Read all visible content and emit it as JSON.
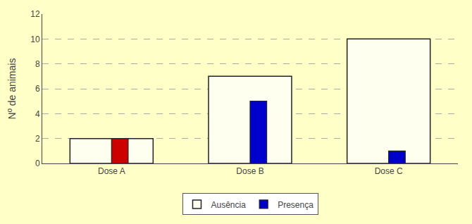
{
  "chart_data": {
    "type": "bar",
    "categories": [
      "Dose A",
      "Dose B",
      "Dose C"
    ],
    "series": [
      {
        "name": "Ausência",
        "color": "#FFFFF0",
        "values": [
          2,
          7,
          10
        ]
      },
      {
        "name": "Presença",
        "color": "#0000CC",
        "colors": [
          "#CC0000",
          "#0000CC",
          "#0000CC"
        ],
        "values": [
          2,
          5,
          1
        ]
      }
    ],
    "ylabel": "Nº de animais",
    "ylim": [
      0,
      12
    ],
    "yticks": [
      0,
      2,
      4,
      6,
      8,
      10,
      12
    ],
    "grid": true,
    "legend": "bottom"
  }
}
